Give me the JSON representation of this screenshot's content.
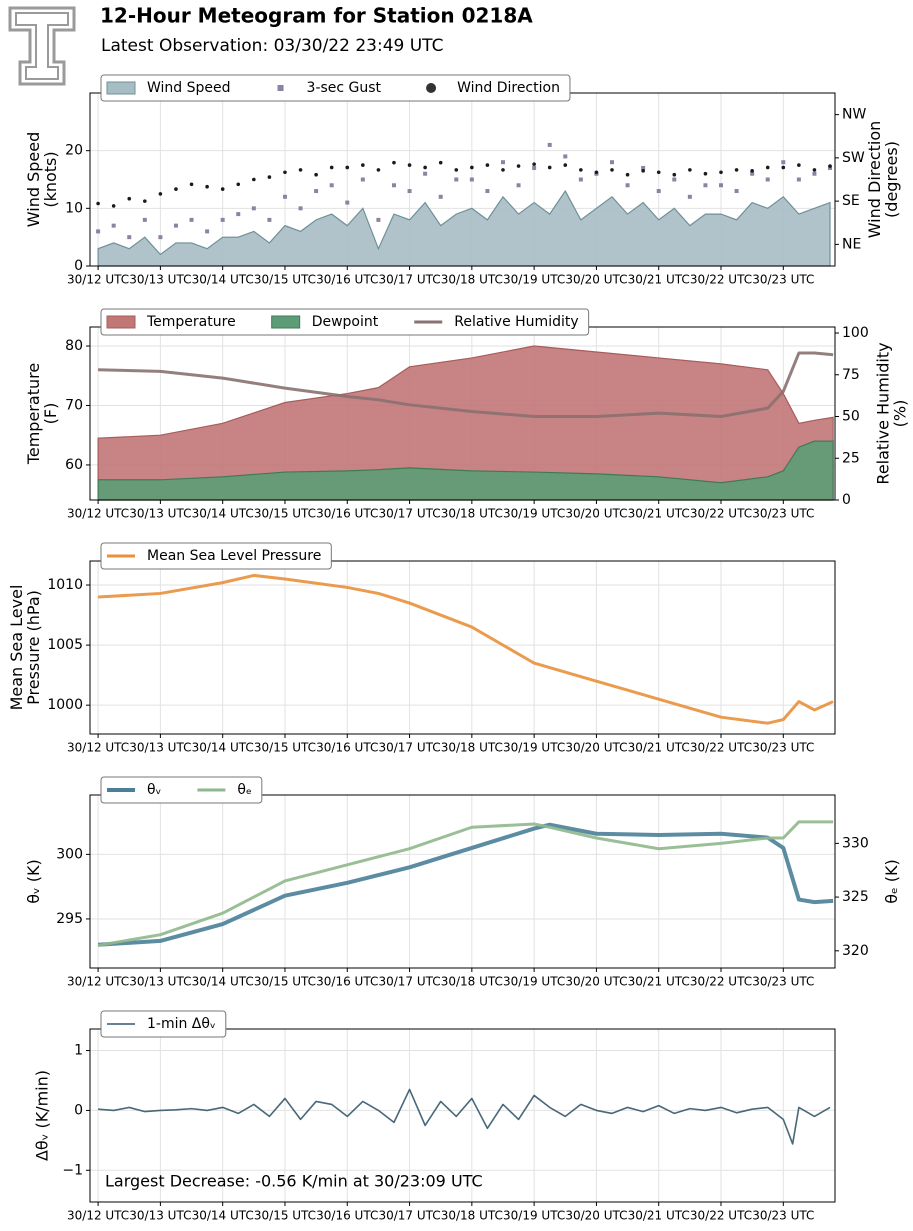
{
  "header": {
    "title": "12-Hour Meteogram for Station 0218A",
    "subtitle": "Latest Observation: 03/30/22 23:49 UTC"
  },
  "chart_data": [
    {
      "type": "area",
      "ylabel": [
        "Wind Speed",
        "(knots)"
      ],
      "y2label": [
        "Wind Direction",
        "(degrees)"
      ],
      "xlim": [
        11.87,
        23.83
      ],
      "xticks": [
        {
          "value": 12,
          "label": "30/12 UTC"
        },
        {
          "value": 13,
          "label": "30/13 UTC"
        },
        {
          "value": 14,
          "label": "30/14 UTC"
        },
        {
          "value": 15,
          "label": "30/15 UTC"
        },
        {
          "value": 16,
          "label": "30/16 UTC"
        },
        {
          "value": 17,
          "label": "30/17 UTC"
        },
        {
          "value": 18,
          "label": "30/18 UTC"
        },
        {
          "value": 19,
          "label": "30/19 UTC"
        },
        {
          "value": 20,
          "label": "30/20 UTC"
        },
        {
          "value": 21,
          "label": "30/21 UTC"
        },
        {
          "value": 22,
          "label": "30/22 UTC"
        },
        {
          "value": 23,
          "label": "30/23 UTC"
        }
      ],
      "ylim": [
        0,
        30
      ],
      "yticks": [
        0,
        10,
        20
      ],
      "y2lim": [
        0,
        360
      ],
      "y2ticks": [
        {
          "value": 45,
          "label": "NE"
        },
        {
          "value": 135,
          "label": "SE"
        },
        {
          "value": 225,
          "label": "SW"
        },
        {
          "value": 315,
          "label": "NW"
        }
      ],
      "grid": true,
      "legend": "upper left",
      "x": [
        12,
        12.25,
        12.5,
        12.75,
        13,
        13.25,
        13.5,
        13.75,
        14,
        14.25,
        14.5,
        14.75,
        15,
        15.25,
        15.5,
        15.75,
        16,
        16.25,
        16.5,
        16.75,
        17,
        17.25,
        17.5,
        17.75,
        18,
        18.25,
        18.5,
        18.75,
        19,
        19.25,
        19.5,
        19.75,
        20,
        20.25,
        20.5,
        20.75,
        21,
        21.25,
        21.5,
        21.75,
        22,
        22.25,
        22.5,
        22.75,
        23,
        23.25,
        23.5,
        23.75
      ],
      "series": [
        {
          "name": "Wind Speed",
          "style": "area",
          "color": "#a7bdc4",
          "edge": "#6f9098",
          "values": [
            3,
            4,
            3,
            5,
            2,
            4,
            4,
            3,
            5,
            5,
            6,
            4,
            7,
            6,
            8,
            9,
            7,
            10,
            3,
            9,
            8,
            11,
            7,
            9,
            10,
            8,
            12,
            9,
            11,
            9,
            13,
            8,
            10,
            12,
            9,
            11,
            8,
            10,
            7,
            9,
            9,
            8,
            11,
            10,
            12,
            9,
            10,
            11
          ]
        },
        {
          "name": "3-sec Gust",
          "style": "square",
          "color": "#8a84a2",
          "values": [
            6,
            7,
            5,
            8,
            5,
            7,
            8,
            6,
            8,
            9,
            10,
            8,
            12,
            10,
            13,
            14,
            11,
            15,
            8,
            14,
            13,
            16,
            12,
            15,
            15,
            13,
            18,
            14,
            17,
            21,
            19,
            15,
            16,
            18,
            14,
            17,
            13,
            15,
            12,
            14,
            14,
            13,
            16,
            15,
            18,
            15,
            16,
            17
          ]
        },
        {
          "name": "Wind Direction",
          "style": "dot",
          "color": "#1a1a1a",
          "axis": "y2",
          "values": [
            130,
            125,
            140,
            135,
            150,
            160,
            170,
            165,
            160,
            170,
            180,
            185,
            195,
            200,
            190,
            205,
            205,
            210,
            200,
            215,
            210,
            205,
            215,
            200,
            205,
            210,
            200,
            208,
            212,
            205,
            210,
            200,
            195,
            200,
            190,
            198,
            195,
            190,
            200,
            192,
            195,
            200,
            198,
            205,
            205,
            210,
            200,
            208
          ]
        }
      ]
    },
    {
      "type": "area",
      "ylabel": [
        "Temperature",
        "(F)"
      ],
      "y2label": [
        "Relative Humidity",
        "(%)"
      ],
      "xlim": [
        11.87,
        23.83
      ],
      "xticks": [
        {
          "value": 12,
          "label": "30/12 UTC"
        },
        {
          "value": 13,
          "label": "30/13 UTC"
        },
        {
          "value": 14,
          "label": "30/14 UTC"
        },
        {
          "value": 15,
          "label": "30/15 UTC"
        },
        {
          "value": 16,
          "label": "30/16 UTC"
        },
        {
          "value": 17,
          "label": "30/17 UTC"
        },
        {
          "value": 18,
          "label": "30/18 UTC"
        },
        {
          "value": 19,
          "label": "30/19 UTC"
        },
        {
          "value": 20,
          "label": "30/20 UTC"
        },
        {
          "value": 21,
          "label": "30/21 UTC"
        },
        {
          "value": 22,
          "label": "30/22 UTC"
        },
        {
          "value": 23,
          "label": "30/23 UTC"
        }
      ],
      "ylim": [
        54.1,
        83.2
      ],
      "yticks": [
        60,
        70,
        80
      ],
      "y2lim": [
        0,
        103.6
      ],
      "y2ticks": [
        0,
        25,
        50,
        75,
        100
      ],
      "grid": true,
      "legend": "upper left",
      "x": [
        12,
        13,
        14,
        15,
        16,
        16.5,
        17,
        18,
        19,
        20,
        21,
        22,
        22.75,
        23,
        23.25,
        23.5,
        23.8
      ],
      "series": [
        {
          "name": "Temperature",
          "style": "area",
          "color": "#c27777",
          "edge": "#a85c5c",
          "values": [
            64.5,
            65,
            67,
            70.5,
            72,
            73,
            76.5,
            78,
            80,
            79,
            78,
            77,
            76,
            72,
            67,
            67.5,
            68
          ]
        },
        {
          "name": "Dewpoint",
          "style": "area",
          "color": "#5c9c76",
          "edge": "#3f7a57",
          "values": [
            57.5,
            57.5,
            58,
            58.8,
            59,
            59.2,
            59.5,
            59,
            58.8,
            58.5,
            58,
            57,
            58,
            59,
            63,
            64,
            64
          ]
        },
        {
          "name": "Relative Humidity",
          "style": "line",
          "color": "#8a7070",
          "axis": "y2",
          "linewidth": 3,
          "values": [
            78,
            77,
            73,
            67,
            62,
            60,
            57,
            53,
            50,
            50,
            52,
            50,
            55,
            65,
            88,
            88,
            87
          ]
        }
      ]
    },
    {
      "type": "line",
      "ylabel": [
        "Mean Sea Level",
        "Pressure (hPa)"
      ],
      "xlim": [
        11.87,
        23.83
      ],
      "xticks": [
        {
          "value": 12,
          "label": "30/12 UTC"
        },
        {
          "value": 13,
          "label": "30/13 UTC"
        },
        {
          "value": 14,
          "label": "30/14 UTC"
        },
        {
          "value": 15,
          "label": "30/15 UTC"
        },
        {
          "value": 16,
          "label": "30/16 UTC"
        },
        {
          "value": 17,
          "label": "30/17 UTC"
        },
        {
          "value": 18,
          "label": "30/18 UTC"
        },
        {
          "value": 19,
          "label": "30/19 UTC"
        },
        {
          "value": 20,
          "label": "30/20 UTC"
        },
        {
          "value": 21,
          "label": "30/21 UTC"
        },
        {
          "value": 22,
          "label": "30/22 UTC"
        },
        {
          "value": 23,
          "label": "30/23 UTC"
        }
      ],
      "ylim": [
        997.6,
        1012
      ],
      "yticks": [
        1000,
        1005,
        1010
      ],
      "grid": true,
      "legend": "upper left",
      "x": [
        12,
        13,
        14,
        14.5,
        15,
        16,
        16.5,
        17,
        18,
        19,
        20,
        21,
        22,
        22.75,
        23,
        23.25,
        23.5,
        23.8
      ],
      "series": [
        {
          "name": "Mean Sea Level Pressure",
          "style": "line",
          "color": "#e8903a",
          "linewidth": 3,
          "values": [
            1009,
            1009.3,
            1010.2,
            1010.8,
            1010.5,
            1009.8,
            1009.3,
            1008.5,
            1006.5,
            1003.5,
            1002,
            1000.5,
            999,
            998.5,
            998.8,
            1000.3,
            999.6,
            1000.3
          ]
        }
      ]
    },
    {
      "type": "line",
      "ylabel": [
        "θᵥ (K)"
      ],
      "y2label": [
        "θₑ (K)"
      ],
      "xlim": [
        11.87,
        23.83
      ],
      "xticks": [
        {
          "value": 12,
          "label": "30/12 UTC"
        },
        {
          "value": 13,
          "label": "30/13 UTC"
        },
        {
          "value": 14,
          "label": "30/14 UTC"
        },
        {
          "value": 15,
          "label": "30/15 UTC"
        },
        {
          "value": 16,
          "label": "30/16 UTC"
        },
        {
          "value": 17,
          "label": "30/17 UTC"
        },
        {
          "value": 18,
          "label": "30/18 UTC"
        },
        {
          "value": 19,
          "label": "30/19 UTC"
        },
        {
          "value": 20,
          "label": "30/20 UTC"
        },
        {
          "value": 21,
          "label": "30/21 UTC"
        },
        {
          "value": 22,
          "label": "30/22 UTC"
        },
        {
          "value": 23,
          "label": "30/23 UTC"
        }
      ],
      "ylim": [
        291.2,
        304.6
      ],
      "yticks": [
        295,
        300
      ],
      "y2lim": [
        318.4,
        334.5
      ],
      "y2ticks": [
        320,
        325,
        330
      ],
      "grid": true,
      "legend": "upper left",
      "x": [
        12,
        13,
        14,
        15,
        16,
        17,
        18,
        19,
        19.25,
        20,
        21,
        22,
        22.75,
        23,
        23.25,
        23.5,
        23.8
      ],
      "series": [
        {
          "name": "θᵥ",
          "style": "line",
          "color": "#4a7f98",
          "linewidth": 4,
          "values": [
            293,
            293.3,
            294.6,
            296.8,
            297.8,
            299,
            300.5,
            302,
            302.3,
            301.6,
            301.5,
            301.6,
            301.3,
            300.5,
            296.5,
            296.3,
            296.4
          ]
        },
        {
          "name": "θₑ",
          "style": "line",
          "color": "#8fb88c",
          "axis": "y2",
          "linewidth": 3,
          "values": [
            320.5,
            321.5,
            323.5,
            326.5,
            328,
            329.5,
            331.5,
            331.8,
            331.5,
            330.5,
            329.5,
            330,
            330.5,
            330.5,
            332,
            332,
            332
          ]
        }
      ]
    },
    {
      "type": "line",
      "ylabel": [
        "Δθᵥ (K/min)"
      ],
      "annotation": "Largest Decrease: -0.56 K/min at 30/23:09 UTC",
      "xlim": [
        11.87,
        23.83
      ],
      "xticks": [
        {
          "value": 12,
          "label": "30/12 UTC"
        },
        {
          "value": 13,
          "label": "30/13 UTC"
        },
        {
          "value": 14,
          "label": "30/14 UTC"
        },
        {
          "value": 15,
          "label": "30/15 UTC"
        },
        {
          "value": 16,
          "label": "30/16 UTC"
        },
        {
          "value": 17,
          "label": "30/17 UTC"
        },
        {
          "value": 18,
          "label": "30/18 UTC"
        },
        {
          "value": 19,
          "label": "30/19 UTC"
        },
        {
          "value": 20,
          "label": "30/20 UTC"
        },
        {
          "value": 21,
          "label": "30/21 UTC"
        },
        {
          "value": 22,
          "label": "30/22 UTC"
        },
        {
          "value": 23,
          "label": "30/23 UTC"
        }
      ],
      "ylim": [
        -1.53,
        1.36
      ],
      "yticks": [
        {
          "value": -1,
          "label": "−1"
        },
        0,
        1
      ],
      "grid": true,
      "legend": "upper left",
      "x": [
        12,
        12.25,
        12.5,
        12.75,
        13,
        13.25,
        13.5,
        13.75,
        14,
        14.25,
        14.5,
        14.75,
        15,
        15.25,
        15.5,
        15.75,
        16,
        16.25,
        16.5,
        16.75,
        17,
        17.25,
        17.5,
        17.75,
        18,
        18.25,
        18.5,
        18.75,
        19,
        19.25,
        19.5,
        19.75,
        20,
        20.25,
        20.5,
        20.75,
        21,
        21.25,
        21.5,
        21.75,
        22,
        22.25,
        22.5,
        22.75,
        23,
        23.15,
        23.25,
        23.5,
        23.75
      ],
      "series": [
        {
          "name": "1-min Δθᵥ",
          "style": "line",
          "color": "#34586c",
          "linewidth": 1.6,
          "values": [
            0.02,
            0,
            0.05,
            -0.02,
            0,
            0.01,
            0.03,
            0,
            0.05,
            -0.05,
            0.1,
            -0.1,
            0.2,
            -0.15,
            0.15,
            0.1,
            -0.1,
            0.15,
            0,
            -0.2,
            0.35,
            -0.25,
            0.15,
            -0.1,
            0.2,
            -0.3,
            0.1,
            -0.15,
            0.25,
            0.05,
            -0.1,
            0.1,
            0,
            -0.05,
            0.05,
            -0.02,
            0.08,
            -0.05,
            0.03,
            0,
            0.05,
            -0.04,
            0.02,
            0.05,
            -0.15,
            -0.56,
            0.05,
            -0.1,
            0.05
          ]
        }
      ]
    }
  ]
}
